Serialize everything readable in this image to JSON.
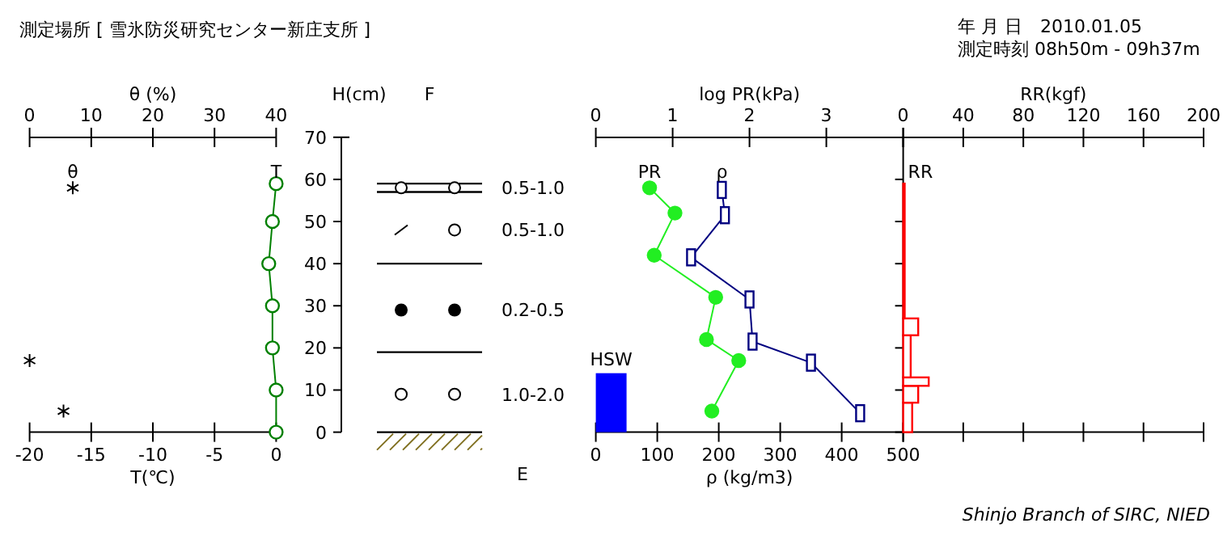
{
  "chart_data": [
    {
      "type": "line",
      "title": "測定場所 [ 雪氷防災研究センター新庄支所 ]",
      "xlabel": "T(℃)",
      "x2label": "θ (%)",
      "ylabel": "H(cm)",
      "xlim": [
        -20,
        0
      ],
      "xticks": [
        -20,
        -15,
        -10,
        -5,
        0
      ],
      "x2lim": [
        0,
        40
      ],
      "x2ticks": [
        0,
        10,
        20,
        30,
        40
      ],
      "ylim": [
        0,
        70
      ],
      "yticks": [
        0,
        10,
        20,
        30,
        40,
        50,
        60,
        70
      ],
      "series": [
        {
          "name": "θ",
          "type": "scatter",
          "axis": "x2",
          "marker": "cross",
          "color": "#000000",
          "x": [
            7,
            0,
            5.5
          ],
          "values": [
            58,
            17,
            5
          ]
        },
        {
          "name": "T",
          "type": "line",
          "marker": "circle",
          "color": "#008000",
          "x": [
            0,
            -0.3,
            -0.6,
            -0.3,
            -0.3,
            0,
            0
          ],
          "values": [
            59,
            50,
            40,
            30,
            20,
            10,
            0
          ]
        }
      ],
      "annotations": [
        "F",
        "E",
        "0.5-1.0",
        "0.5-1.0",
        "0.2-0.5",
        "1.0-2.0"
      ]
    },
    {
      "type": "line",
      "xlabel": "ρ (kg/m3)",
      "x2label": "log PR(kPa)",
      "xlim": [
        0,
        500
      ],
      "xticks": [
        0,
        100,
        200,
        300,
        400,
        500
      ],
      "x2lim": [
        0,
        4
      ],
      "x2ticks": [
        0,
        1,
        2,
        3,
        {
          "value": 4,
          "label": null
        }
      ],
      "ylim": [
        0,
        70
      ],
      "tick_labels": "x",
      "series": [
        {
          "name": "PR",
          "type": "line",
          "axis": "x2",
          "marker": "circle",
          "color": "#22ee22",
          "x": [
            0.7,
            1.03,
            0.76,
            1.56,
            1.44,
            1.86,
            1.51
          ],
          "values": [
            58,
            52,
            42,
            32,
            22,
            17,
            5
          ]
        },
        {
          "name": "ρ",
          "type": "line",
          "marker": "square",
          "color": "#000080",
          "x": [
            205,
            210,
            155,
            250,
            255,
            350,
            430
          ],
          "values": [
            57.5,
            51.5,
            41.5,
            31.5,
            21.5,
            16.5,
            4.5
          ]
        },
        {
          "name": "HSW",
          "type": "bar",
          "color": "#0000ff",
          "x": [
            25
          ],
          "values": [
            14
          ]
        }
      ]
    },
    {
      "type": "histogram",
      "orientation": "horizontal",
      "xlabel": "RR(kgf)",
      "xlim": [
        0,
        200
      ],
      "xticks": [
        0,
        40,
        80,
        120,
        160,
        200
      ],
      "ylim": [
        0,
        70
      ],
      "yticks": [
        0,
        10,
        20,
        30,
        40,
        50,
        60
      ],
      "tick_labels": "x",
      "bins": [
        0,
        7,
        11,
        13,
        23,
        27,
        59
      ],
      "series": [
        {
          "name": "RR",
          "color": "#ff0000",
          "values": [
            6,
            10,
            17,
            5,
            10,
            1
          ]
        }
      ],
      "annotations": [
        "年 月 日　2010.01.05",
        "測定時刻 08h50m - 09h37m",
        "Shinjo Branch of SIRC, NIED"
      ]
    }
  ]
}
